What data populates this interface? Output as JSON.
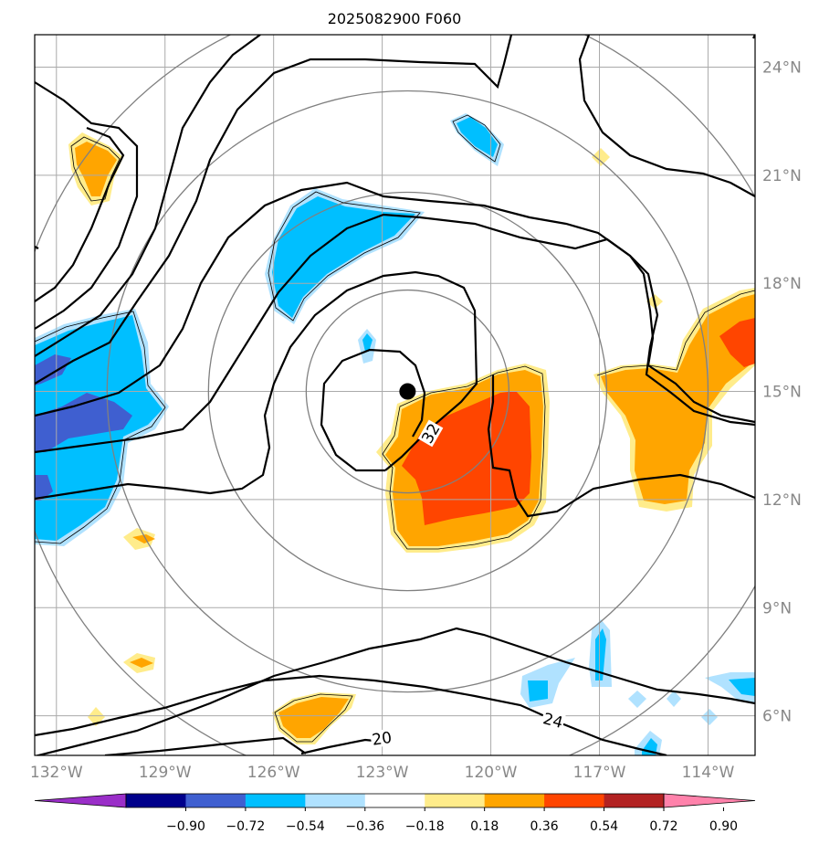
{
  "chart_data": {
    "type": "map",
    "title": "2025082900 F060",
    "lon_ticks": [
      "132°W",
      "129°W",
      "126°W",
      "123°W",
      "120°W",
      "117°W",
      "114°W"
    ],
    "lon_values": [
      -132,
      -129,
      -126,
      -123,
      -120,
      -117,
      -114
    ],
    "lat_ticks": [
      "6°N",
      "9°N",
      "12°N",
      "15°N",
      "18°N",
      "21°N",
      "24°N"
    ],
    "lat_values": [
      6,
      9,
      12,
      15,
      18,
      21,
      24
    ],
    "lon_range": [
      -132.6,
      -112.7
    ],
    "lat_range": [
      4.9,
      24.9
    ],
    "grid": true,
    "center": {
      "lon": -122.3,
      "lat": 15.0
    },
    "range_rings_deg": [
      2.8,
      5.5,
      8.3,
      11.0
    ],
    "contour_labels": [
      {
        "text": "32",
        "lon": -121.6,
        "lat": 13.8,
        "angle": -60
      },
      {
        "text": "20",
        "lon": -123.0,
        "lat": 5.3,
        "angle": -8
      },
      {
        "text": "24",
        "lon": -118.3,
        "lat": 5.8,
        "angle": 15
      }
    ],
    "colorbar": {
      "ticks": [
        "−0.90",
        "−0.72",
        "−0.54",
        "−0.36",
        "−0.18",
        "0.18",
        "0.36",
        "0.54",
        "0.72",
        "0.90"
      ],
      "colors": [
        "#9a2ec8",
        "#00008b",
        "#3f5fd0",
        "#00bfff",
        "#b0e2ff",
        "#ffffff",
        "#ffec8b",
        "#ffa500",
        "#ff4500",
        "#b22222",
        "#ff82ab"
      ],
      "extend": "both"
    }
  }
}
